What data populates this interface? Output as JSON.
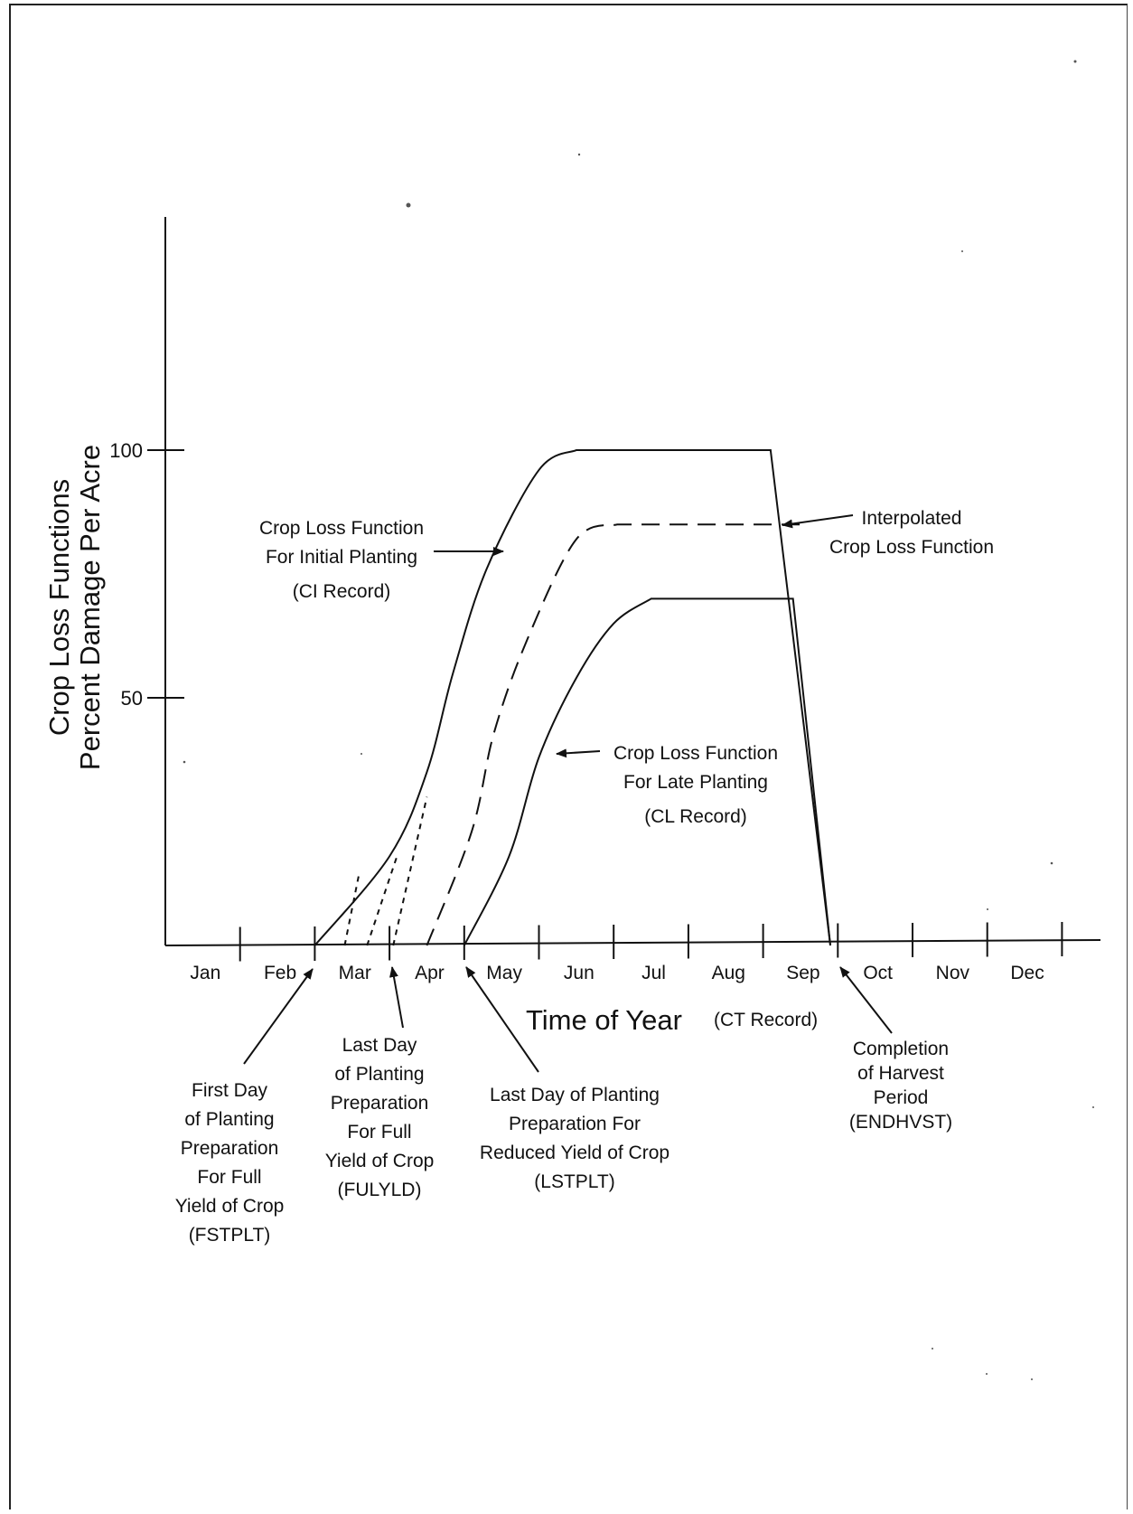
{
  "chart_data": {
    "type": "line",
    "ylabel_lines": [
      "Crop Loss Functions",
      "Percent Damage Per Acre"
    ],
    "xlabel": "Time of Year",
    "xlabel_sub": "(CT Record)",
    "x_categories": [
      "Jan",
      "Feb",
      "Mar",
      "Apr",
      "May",
      "Jun",
      "Jul",
      "Aug",
      "Sep",
      "Oct",
      "Nov",
      "Dec"
    ],
    "yticks": [
      50,
      100
    ],
    "ylim": [
      0,
      100
    ],
    "series": [
      {
        "key": "initial",
        "style": "solid",
        "points": [
          [
            2.0,
            0
          ],
          [
            3.0,
            18
          ],
          [
            3.5,
            35
          ],
          [
            3.85,
            55
          ],
          [
            4.3,
            76
          ],
          [
            5.0,
            96
          ],
          [
            5.5,
            100
          ],
          [
            8.1,
            100
          ],
          [
            8.9,
            0
          ]
        ]
      },
      {
        "key": "interpolated",
        "style": "long-dash",
        "points": [
          [
            3.5,
            0
          ],
          [
            4.1,
            23
          ],
          [
            4.4,
            43
          ],
          [
            4.85,
            62
          ],
          [
            5.5,
            82
          ],
          [
            6.05,
            85
          ],
          [
            8.1,
            85
          ],
          [
            8.55,
            85
          ]
        ]
      },
      {
        "key": "late",
        "style": "solid",
        "points": [
          [
            4.0,
            0
          ],
          [
            4.6,
            18
          ],
          [
            5.0,
            38
          ],
          [
            5.5,
            54
          ],
          [
            6.0,
            65
          ],
          [
            6.5,
            70
          ],
          [
            8.4,
            70
          ],
          [
            8.9,
            0
          ]
        ]
      }
    ],
    "transition_lines": [
      {
        "points": [
          [
            2.4,
            0
          ],
          [
            2.6,
            15
          ]
        ]
      },
      {
        "points": [
          [
            2.7,
            0
          ],
          [
            3.1,
            18
          ]
        ]
      },
      {
        "points": [
          [
            3.05,
            0
          ],
          [
            3.5,
            30
          ]
        ]
      }
    ],
    "annotations": {
      "initial": {
        "lines": [
          "Crop Loss Function",
          "For Initial Planting",
          "(CI Record)"
        ]
      },
      "interpolated": {
        "lines": [
          "Interpolated",
          "Crop Loss Function"
        ]
      },
      "late": {
        "lines": [
          "Crop Loss Function",
          "For Late Planting",
          "(CL Record)"
        ]
      },
      "fstplt": {
        "lines": [
          "First Day",
          "of Planting",
          "Preparation",
          "For Full",
          "Yield of Crop",
          "(FSTPLT)"
        ]
      },
      "fulyld": {
        "lines": [
          "Last Day",
          "of Planting",
          "Preparation",
          "For Full",
          "Yield of Crop",
          "(FULYLD)"
        ]
      },
      "lstplt": {
        "lines": [
          "Last Day of Planting",
          "Preparation For",
          "Reduced Yield of Crop",
          "(LSTPLT)"
        ]
      },
      "endhvst": {
        "lines": [
          "Completion",
          "of Harvest",
          "Period",
          "(ENDHVST)"
        ]
      }
    }
  }
}
